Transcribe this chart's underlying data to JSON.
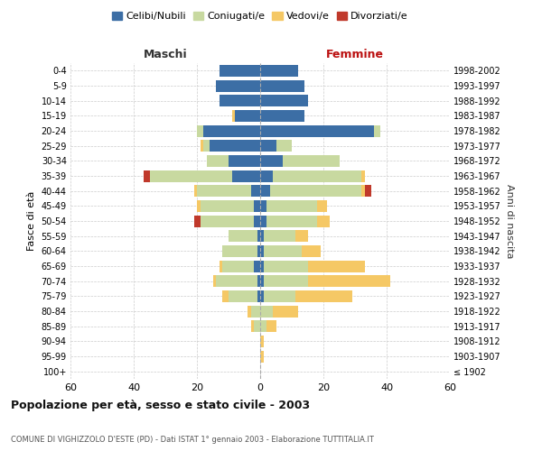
{
  "age_groups": [
    "100+",
    "95-99",
    "90-94",
    "85-89",
    "80-84",
    "75-79",
    "70-74",
    "65-69",
    "60-64",
    "55-59",
    "50-54",
    "45-49",
    "40-44",
    "35-39",
    "30-34",
    "25-29",
    "20-24",
    "15-19",
    "10-14",
    "5-9",
    "0-4"
  ],
  "birth_years": [
    "≤ 1902",
    "1903-1907",
    "1908-1912",
    "1913-1917",
    "1918-1922",
    "1923-1927",
    "1928-1932",
    "1933-1937",
    "1938-1942",
    "1943-1947",
    "1948-1952",
    "1953-1957",
    "1958-1962",
    "1963-1967",
    "1968-1972",
    "1973-1977",
    "1978-1982",
    "1983-1987",
    "1988-1992",
    "1993-1997",
    "1998-2002"
  ],
  "maschi": {
    "celibi": [
      0,
      0,
      0,
      0,
      0,
      1,
      1,
      2,
      1,
      1,
      2,
      2,
      3,
      9,
      10,
      16,
      18,
      8,
      13,
      14,
      13
    ],
    "coniugati": [
      0,
      0,
      0,
      2,
      3,
      9,
      13,
      10,
      11,
      9,
      17,
      17,
      17,
      26,
      7,
      2,
      2,
      0,
      0,
      0,
      0
    ],
    "vedovi": [
      0,
      0,
      0,
      1,
      1,
      2,
      1,
      1,
      0,
      0,
      0,
      1,
      1,
      0,
      0,
      1,
      0,
      1,
      0,
      0,
      0
    ],
    "divorziati": [
      0,
      0,
      0,
      0,
      0,
      0,
      0,
      0,
      0,
      0,
      2,
      0,
      0,
      2,
      0,
      0,
      0,
      0,
      0,
      0,
      0
    ]
  },
  "femmine": {
    "nubili": [
      0,
      0,
      0,
      0,
      0,
      1,
      1,
      1,
      1,
      1,
      2,
      2,
      3,
      4,
      7,
      5,
      36,
      14,
      15,
      14,
      12
    ],
    "coniugate": [
      0,
      0,
      0,
      2,
      4,
      10,
      14,
      14,
      12,
      10,
      16,
      16,
      29,
      28,
      18,
      5,
      2,
      0,
      0,
      0,
      0
    ],
    "vedove": [
      0,
      1,
      1,
      3,
      8,
      18,
      26,
      18,
      6,
      4,
      4,
      3,
      1,
      1,
      0,
      0,
      0,
      0,
      0,
      0,
      0
    ],
    "divorziate": [
      0,
      0,
      0,
      0,
      0,
      0,
      0,
      0,
      0,
      0,
      0,
      0,
      2,
      0,
      0,
      0,
      0,
      0,
      0,
      0,
      0
    ]
  },
  "colors": {
    "celibi_nubili": "#3c6ea5",
    "coniugati": "#c8d9a0",
    "vedovi": "#f5c865",
    "divorziati": "#c0392b"
  },
  "xlim": 60,
  "title": "Popolazione per età, sesso e stato civile - 2003",
  "subtitle": "COMUNE DI VIGHIZZOLO D'ESTE (PD) - Dati ISTAT 1° gennaio 2003 - Elaborazione TUTTITALIA.IT",
  "ylabel_left": "Fasce di età",
  "ylabel_right": "Anni di nascita",
  "xlabel_left": "Maschi",
  "xlabel_right": "Femmine",
  "bg_color": "#ffffff",
  "grid_color": "#cccccc"
}
